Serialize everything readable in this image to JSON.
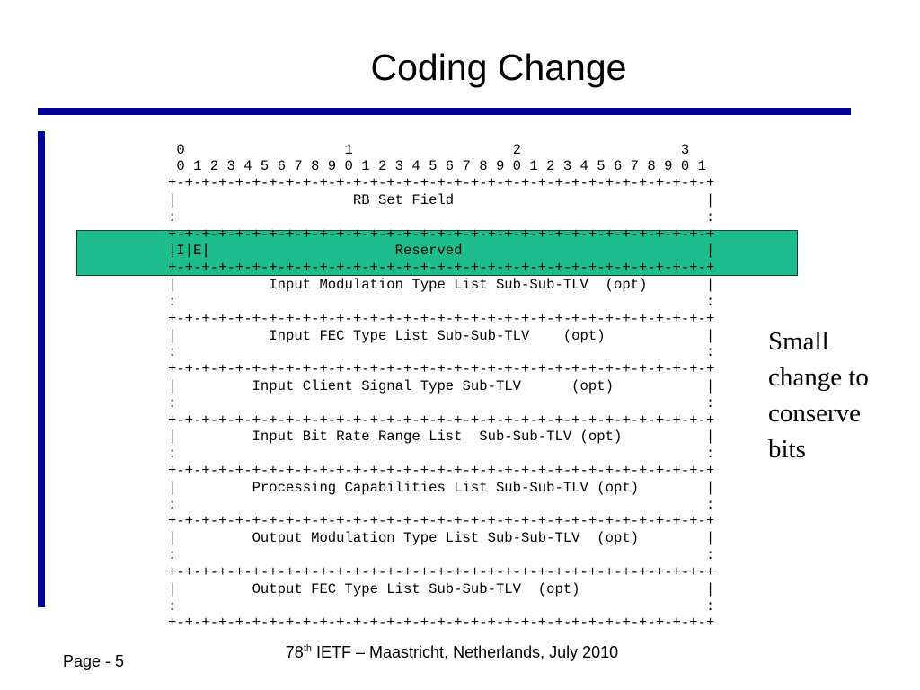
{
  "title": "Coding Change",
  "diagram": {
    "lines": [
      " 0                   1                   2                   3",
      " 0 1 2 3 4 5 6 7 8 9 0 1 2 3 4 5 6 7 8 9 0 1 2 3 4 5 6 7 8 9 0 1",
      "+-+-+-+-+-+-+-+-+-+-+-+-+-+-+-+-+-+-+-+-+-+-+-+-+-+-+-+-+-+-+-+-+",
      "|                     RB Set Field                              |",
      ":                                                               :",
      "+-+-+-+-+-+-+-+-+-+-+-+-+-+-+-+-+-+-+-+-+-+-+-+-+-+-+-+-+-+-+-+-+",
      "|I|E|                      Reserved                             |",
      "+-+-+-+-+-+-+-+-+-+-+-+-+-+-+-+-+-+-+-+-+-+-+-+-+-+-+-+-+-+-+-+-+",
      "|           Input Modulation Type List Sub-Sub-TLV  (opt)       |",
      ":                                                               :",
      "+-+-+-+-+-+-+-+-+-+-+-+-+-+-+-+-+-+-+-+-+-+-+-+-+-+-+-+-+-+-+-+-+",
      "|           Input FEC Type List Sub-Sub-TLV    (opt)            |",
      ":                                                               :",
      "+-+-+-+-+-+-+-+-+-+-+-+-+-+-+-+-+-+-+-+-+-+-+-+-+-+-+-+-+-+-+-+-+",
      "|         Input Client Signal Type Sub-TLV      (opt)           |",
      ":                                                               :",
      "+-+-+-+-+-+-+-+-+-+-+-+-+-+-+-+-+-+-+-+-+-+-+-+-+-+-+-+-+-+-+-+-+",
      "|         Input Bit Rate Range List  Sub-Sub-TLV (opt)          |",
      ":                                                               :",
      "+-+-+-+-+-+-+-+-+-+-+-+-+-+-+-+-+-+-+-+-+-+-+-+-+-+-+-+-+-+-+-+-+",
      "|         Processing Capabilities List Sub-Sub-TLV (opt)        |",
      ":                                                               :",
      "+-+-+-+-+-+-+-+-+-+-+-+-+-+-+-+-+-+-+-+-+-+-+-+-+-+-+-+-+-+-+-+-+",
      "|         Output Modulation Type List Sub-Sub-TLV  (opt)        |",
      ":                                                               :",
      "+-+-+-+-+-+-+-+-+-+-+-+-+-+-+-+-+-+-+-+-+-+-+-+-+-+-+-+-+-+-+-+-+",
      "|         Output FEC Type List Sub-Sub-TLV  (opt)               |",
      ":                                                               :",
      "+-+-+-+-+-+-+-+-+-+-+-+-+-+-+-+-+-+-+-+-+-+-+-+-+-+-+-+-+-+-+-+-+"
    ]
  },
  "note": {
    "lines": [
      "Small",
      "change to",
      "conserve",
      "bits"
    ]
  },
  "footer": {
    "ordinal": "78",
    "superscript": "th",
    "event": "IETF – Maastricht, Netherlands, July 2010",
    "page": "Page - 5"
  }
}
